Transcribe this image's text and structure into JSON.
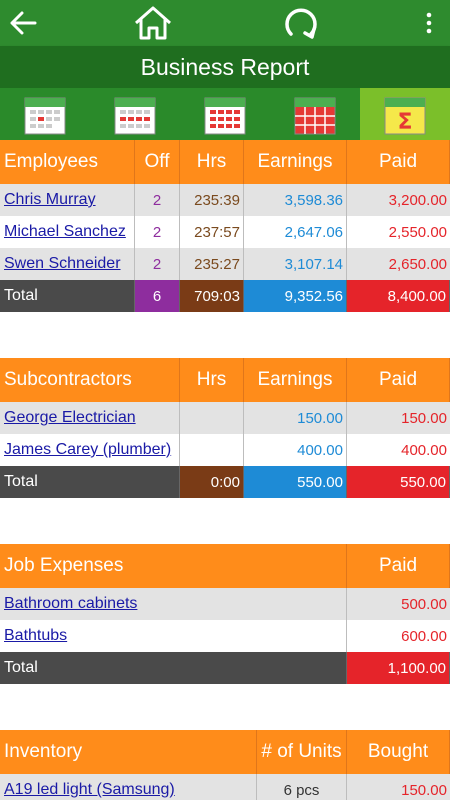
{
  "app": {
    "title": "Business Report"
  },
  "icons": {
    "back": "back-arrow-icon",
    "home": "home-icon",
    "refresh": "refresh-icon",
    "menu": "overflow-menu-icon",
    "sum": "sigma-icon"
  },
  "tabs": [
    {
      "name": "calendar-day-icon",
      "active": false
    },
    {
      "name": "calendar-week-icon",
      "active": false
    },
    {
      "name": "calendar-month-icon",
      "active": false
    },
    {
      "name": "calendar-year-icon",
      "active": false
    },
    {
      "name": "summary-sigma-icon",
      "active": true,
      "label": "Σ"
    }
  ],
  "employees": {
    "headers": [
      "Employees",
      "Off",
      "Hrs",
      "Earnings",
      "Paid"
    ],
    "rows": [
      {
        "name": "Chris Murray",
        "off": "2",
        "hrs": "235:39",
        "earnings": "3,598.36",
        "paid": "3,200.00"
      },
      {
        "name": "Michael Sanchez",
        "off": "2",
        "hrs": "237:57",
        "earnings": "2,647.06",
        "paid": "2,550.00"
      },
      {
        "name": "Swen Schneider",
        "off": "2",
        "hrs": "235:27",
        "earnings": "3,107.14",
        "paid": "2,650.00"
      }
    ],
    "total": {
      "label": "Total",
      "off": "6",
      "hrs": "709:03",
      "earnings": "9,352.56",
      "paid": "8,400.00"
    }
  },
  "subcontractors": {
    "headers": [
      "Subcontractors",
      "Hrs",
      "Earnings",
      "Paid"
    ],
    "rows": [
      {
        "name": "George Electrician",
        "hrs": "",
        "earnings": "150.00",
        "paid": "150.00"
      },
      {
        "name": "James Carey (plumber)",
        "hrs": "",
        "earnings": "400.00",
        "paid": "400.00"
      }
    ],
    "total": {
      "label": "Total",
      "hrs": "0:00",
      "earnings": "550.00",
      "paid": "550.00"
    }
  },
  "expenses": {
    "headers": [
      "Job Expenses",
      "Paid"
    ],
    "rows": [
      {
        "name": "Bathroom cabinets",
        "paid": "500.00"
      },
      {
        "name": "Bathtubs",
        "paid": "600.00"
      }
    ],
    "total": {
      "label": "Total",
      "paid": "1,100.00"
    }
  },
  "inventory": {
    "headers": [
      "Inventory",
      "# of Units",
      "Bought"
    ],
    "rows": [
      {
        "name": "A19 led light (Samsung)",
        "units": "6 pcs",
        "bought": "150.00"
      }
    ]
  }
}
